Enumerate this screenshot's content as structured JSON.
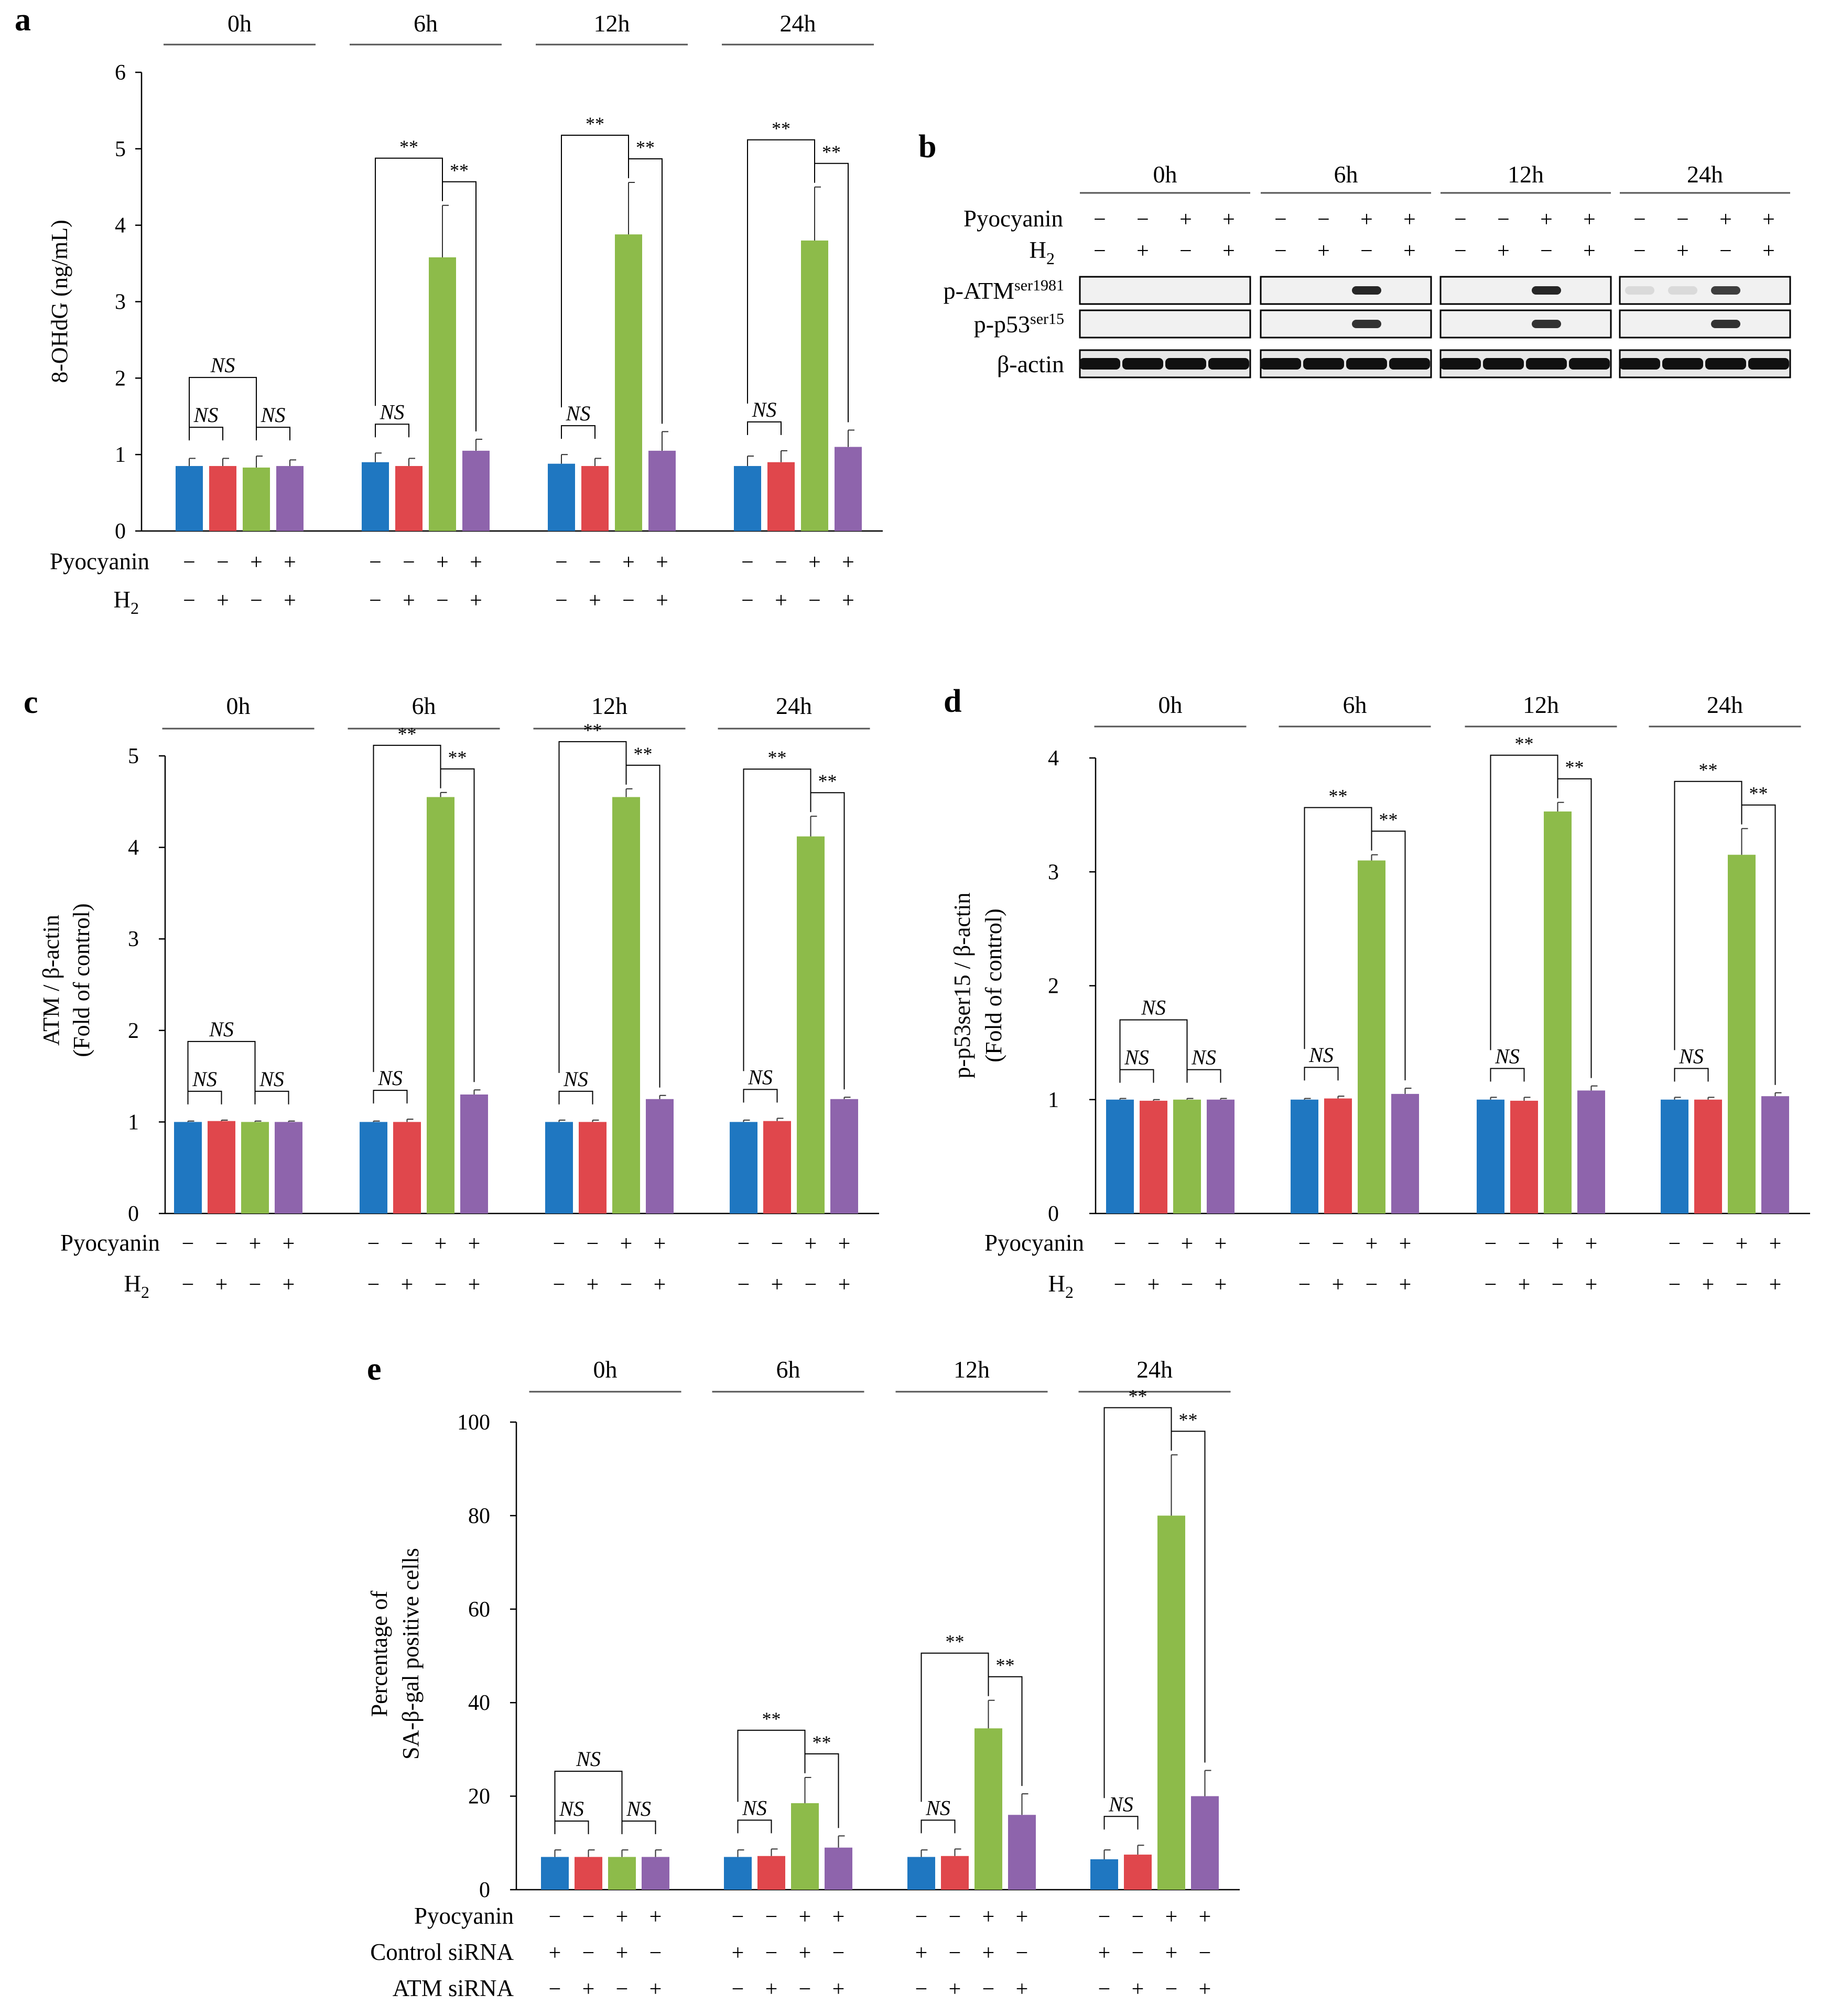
{
  "colors": {
    "blue": "#1f77c1",
    "red": "#e0474c",
    "green": "#8dbb4a",
    "purple": "#8e64ac"
  },
  "timepoints": [
    "0h",
    "6h",
    "12h",
    "24h"
  ],
  "stars": "**",
  "ns_label": "NS",
  "chart_data": [
    {
      "id": "a",
      "type": "bar",
      "letter": "a",
      "ylabel": "8-OHdG (ng/mL)",
      "ylim": [
        0,
        6
      ],
      "yticks": [
        "0",
        "1",
        "2",
        "3",
        "4",
        "5",
        "6"
      ],
      "groups": [
        "0h",
        "6h",
        "12h",
        "24h"
      ],
      "series": [
        {
          "name": "Pyocyanin − / H2 −",
          "color": "blue",
          "values": [
            0.85,
            0.9,
            0.88,
            0.85
          ],
          "errors": [
            0.1,
            0.12,
            0.12,
            0.13
          ]
        },
        {
          "name": "Pyocyanin − / H2 +",
          "color": "red",
          "values": [
            0.85,
            0.85,
            0.85,
            0.9
          ],
          "errors": [
            0.1,
            0.1,
            0.1,
            0.15
          ]
        },
        {
          "name": "Pyocyanin + / H2 −",
          "color": "green",
          "values": [
            0.83,
            3.58,
            3.88,
            3.8
          ],
          "errors": [
            0.15,
            0.68,
            0.68,
            0.7
          ]
        },
        {
          "name": "Pyocyanin + / H2 +",
          "color": "purple",
          "values": [
            0.85,
            1.05,
            1.05,
            1.1
          ],
          "errors": [
            0.08,
            0.15,
            0.25,
            0.22
          ]
        }
      ],
      "condition_rows": [
        {
          "label": "Pyocyanin",
          "signs": [
            "−",
            "−",
            "+",
            "+"
          ]
        },
        {
          "label": "H2",
          "signs": [
            "−",
            "+",
            "−",
            "+"
          ]
        }
      ],
      "significance": [
        "NS",
        "NS",
        "NS",
        "**",
        "**",
        "**",
        "**",
        "**",
        "**"
      ]
    },
    {
      "id": "c",
      "type": "bar",
      "letter": "c",
      "ylabel": "ATM / β-actin",
      "ylabel2": "(Fold of control)",
      "ylim": [
        0,
        5
      ],
      "yticks": [
        "0",
        "1",
        "2",
        "3",
        "4",
        "5"
      ],
      "groups": [
        "0h",
        "6h",
        "12h",
        "24h"
      ],
      "series": [
        {
          "name": "Pyocyanin − / H2 −",
          "color": "blue",
          "values": [
            1.0,
            1.0,
            1.0,
            1.0
          ],
          "errors": [
            0.01,
            0.01,
            0.02,
            0.02
          ]
        },
        {
          "name": "Pyocyanin − / H2 +",
          "color": "red",
          "values": [
            1.01,
            1.0,
            1.0,
            1.01
          ],
          "errors": [
            0.01,
            0.03,
            0.02,
            0.03
          ]
        },
        {
          "name": "Pyocyanin + / H2 −",
          "color": "green",
          "values": [
            1.0,
            4.55,
            4.55,
            4.12
          ],
          "errors": [
            0.01,
            0.05,
            0.09,
            0.22
          ]
        },
        {
          "name": "Pyocyanin + / H2 +",
          "color": "purple",
          "values": [
            1.0,
            1.3,
            1.25,
            1.25
          ],
          "errors": [
            0.01,
            0.05,
            0.04,
            0.02
          ]
        }
      ],
      "condition_rows": [
        {
          "label": "Pyocyanin",
          "signs": [
            "−",
            "−",
            "+",
            "+"
          ]
        },
        {
          "label": "H2",
          "signs": [
            "−",
            "+",
            "−",
            "+"
          ]
        }
      ],
      "significance": [
        "NS",
        "NS",
        "NS",
        "**",
        "**",
        "**",
        "**",
        "**",
        "**"
      ]
    },
    {
      "id": "d",
      "type": "bar",
      "letter": "d",
      "ylabel": "p-p53ser15 / β-actin",
      "ylabel2": "(Fold of control)",
      "ylim": [
        0,
        4
      ],
      "yticks": [
        "0",
        "1",
        "2",
        "3",
        "4"
      ],
      "groups": [
        "0h",
        "6h",
        "12h",
        "24h"
      ],
      "series": [
        {
          "name": "Pyocyanin − / H2 −",
          "color": "blue",
          "values": [
            1.0,
            1.0,
            1.0,
            1.0
          ],
          "errors": [
            0.01,
            0.01,
            0.02,
            0.02
          ]
        },
        {
          "name": "Pyocyanin − / H2 +",
          "color": "red",
          "values": [
            0.99,
            1.01,
            0.99,
            1.0
          ],
          "errors": [
            0.01,
            0.02,
            0.03,
            0.02
          ]
        },
        {
          "name": "Pyocyanin + / H2 −",
          "color": "green",
          "values": [
            1.0,
            3.1,
            3.53,
            3.15
          ],
          "errors": [
            0.01,
            0.05,
            0.08,
            0.23
          ]
        },
        {
          "name": "Pyocyanin + / H2 +",
          "color": "purple",
          "values": [
            1.0,
            1.05,
            1.08,
            1.03
          ],
          "errors": [
            0.01,
            0.05,
            0.04,
            0.03
          ]
        }
      ],
      "condition_rows": [
        {
          "label": "Pyocyanin",
          "signs": [
            "−",
            "−",
            "+",
            "+"
          ]
        },
        {
          "label": "H2",
          "signs": [
            "−",
            "+",
            "−",
            "+"
          ]
        }
      ],
      "significance": [
        "NS",
        "NS",
        "NS",
        "**",
        "**",
        "**",
        "**",
        "**",
        "**"
      ]
    },
    {
      "id": "e",
      "type": "bar",
      "letter": "e",
      "ylabel": "Percentage of",
      "ylabel2": "SA-β-gal positive cells",
      "ylim": [
        0,
        100
      ],
      "yticks": [
        "0",
        "20",
        "40",
        "60",
        "80",
        "100"
      ],
      "groups": [
        "0h",
        "6h",
        "12h",
        "24h"
      ],
      "series": [
        {
          "name": "Pyocyanin − / Control siRNA + / ATM siRNA −",
          "color": "blue",
          "values": [
            7.0,
            7.0,
            7.0,
            6.5
          ],
          "errors": [
            1.5,
            1.5,
            1.5,
            2.0
          ]
        },
        {
          "name": "Pyocyanin − / Control siRNA − / ATM siRNA +",
          "color": "red",
          "values": [
            7.0,
            7.2,
            7.2,
            7.5
          ],
          "errors": [
            1.5,
            1.5,
            1.5,
            2.0
          ]
        },
        {
          "name": "Pyocyanin + / Control siRNA + / ATM siRNA −",
          "color": "green",
          "values": [
            7.0,
            18.5,
            34.5,
            80.0
          ],
          "errors": [
            1.5,
            5.5,
            6.0,
            13.0
          ]
        },
        {
          "name": "Pyocyanin + / Control siRNA − / ATM siRNA +",
          "color": "purple",
          "values": [
            7.0,
            9.0,
            16.0,
            20.0
          ],
          "errors": [
            1.5,
            2.5,
            4.5,
            5.5
          ]
        }
      ],
      "condition_rows": [
        {
          "label": "Pyocyanin",
          "signs": [
            "−",
            "−",
            "+",
            "+"
          ]
        },
        {
          "label": "Control siRNA",
          "signs": [
            "+",
            "−",
            "+",
            "−"
          ]
        },
        {
          "label": "ATM siRNA",
          "signs": [
            "−",
            "+",
            "−",
            "+"
          ]
        }
      ],
      "significance": [
        "NS",
        "NS",
        "NS",
        "**",
        "**",
        "**",
        "**",
        "**",
        "**"
      ]
    }
  ],
  "blot": {
    "letter": "b",
    "groups": [
      "0h",
      "6h",
      "12h",
      "24h"
    ],
    "condition_rows": [
      {
        "label": "Pyocyanin",
        "signs": [
          "−",
          "−",
          "+",
          "+"
        ]
      },
      {
        "label": "H2",
        "signs": [
          "−",
          "+",
          "−",
          "+"
        ]
      }
    ],
    "rows": [
      {
        "label": "p-ATM",
        "sup": "ser1981",
        "band_intensity": [
          [
            0,
            0,
            0,
            0
          ],
          [
            0,
            0,
            0.9,
            0
          ],
          [
            0,
            0,
            0.9,
            0
          ],
          [
            0.1,
            0.1,
            0.8,
            0
          ]
        ]
      },
      {
        "label": "p-p53",
        "sup": "ser15",
        "band_intensity": [
          [
            0,
            0,
            0,
            0
          ],
          [
            0,
            0,
            0.85,
            0
          ],
          [
            0,
            0,
            0.85,
            0
          ],
          [
            0,
            0,
            0.85,
            0
          ]
        ]
      },
      {
        "label": "β-actin",
        "sup": "",
        "band_intensity": [
          [
            1,
            1,
            1,
            1
          ],
          [
            1,
            1,
            1,
            1
          ],
          [
            1,
            1,
            1,
            1
          ],
          [
            1,
            1,
            1,
            1
          ]
        ]
      }
    ]
  }
}
